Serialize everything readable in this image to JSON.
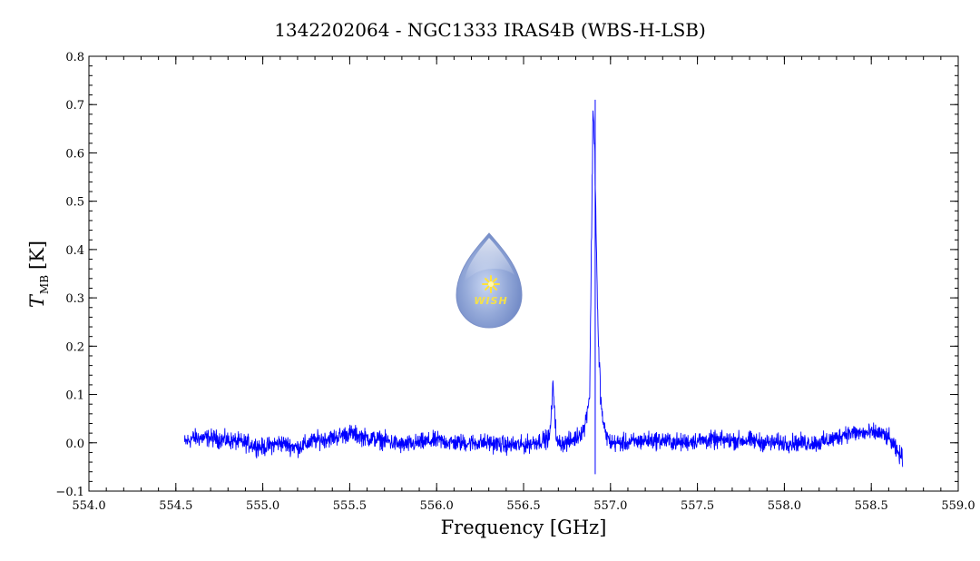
{
  "chart_data": {
    "type": "line",
    "title": "1342202064 - NGC1333 IRAS4B (WBS-H-LSB)",
    "xlabel": "Frequency [GHz]",
    "ylabel_main": "T",
    "ylabel_sub": "MB",
    "ylabel_unit": "[K]",
    "xlim": [
      554.0,
      559.0
    ],
    "ylim": [
      -0.1,
      0.8
    ],
    "x_ticks": [
      554.0,
      554.5,
      555.0,
      555.5,
      556.0,
      556.5,
      557.0,
      557.5,
      558.0,
      558.5,
      559.0
    ],
    "x_tick_labels": [
      "554.0",
      "554.5",
      "555.0",
      "555.5",
      "556.0",
      "556.5",
      "557.0",
      "557.5",
      "558.0",
      "558.5",
      "559.0"
    ],
    "y_ticks": [
      -0.1,
      0.0,
      0.1,
      0.2,
      0.3,
      0.4,
      0.5,
      0.6,
      0.7,
      0.8
    ],
    "y_tick_labels": [
      "−0.1",
      "0.0",
      "0.1",
      "0.2",
      "0.3",
      "0.4",
      "0.5",
      "0.6",
      "0.7",
      "0.8"
    ],
    "grid": false,
    "series": [
      {
        "color": "#0000ff",
        "x": [
          554.55,
          554.6,
          554.7,
          554.8,
          554.9,
          555.0,
          555.1,
          555.2,
          555.3,
          555.4,
          555.5,
          555.6,
          555.7,
          555.8,
          555.9,
          556.0,
          556.1,
          556.2,
          556.3,
          556.4,
          556.5,
          556.6,
          556.65,
          556.67,
          556.69,
          556.75,
          556.8,
          556.85,
          556.88,
          556.9,
          556.91,
          556.92,
          556.93,
          556.95,
          556.97,
          557.0,
          557.1,
          557.2,
          557.3,
          557.4,
          557.5,
          557.6,
          557.7,
          557.8,
          557.9,
          558.0,
          558.1,
          558.2,
          558.3,
          558.35,
          558.4,
          558.5,
          558.55,
          558.6,
          558.65,
          558.68
        ],
        "y": [
          0.0,
          0.01,
          0.01,
          0.005,
          0.0,
          -0.01,
          0.0,
          -0.01,
          0.005,
          0.01,
          0.02,
          0.01,
          0.005,
          -0.005,
          0.0,
          0.005,
          0.0,
          0.0,
          0.0,
          -0.005,
          -0.005,
          0.005,
          0.01,
          0.12,
          0.0,
          0.0,
          0.01,
          0.03,
          0.1,
          0.7,
          0.6,
          0.38,
          0.2,
          0.06,
          0.02,
          0.0,
          0.0,
          0.005,
          0.005,
          0.0,
          0.005,
          0.005,
          0.005,
          0.005,
          0.0,
          0.0,
          0.0,
          0.0,
          0.01,
          0.02,
          0.02,
          0.02,
          0.02,
          0.01,
          -0.02,
          -0.03
        ]
      }
    ]
  },
  "logo": {
    "label": "WISH",
    "colors": {
      "drop": "#8fa6d6",
      "drop_edge": "#5f7fc0",
      "star": "#ffe23a"
    }
  }
}
